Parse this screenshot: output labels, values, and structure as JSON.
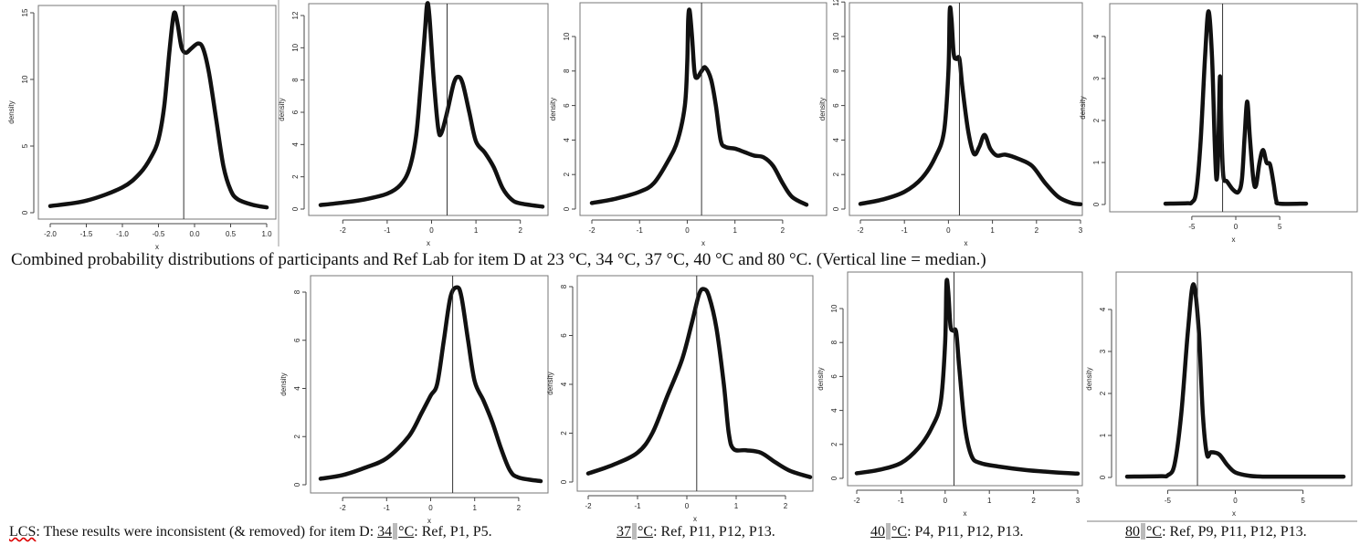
{
  "caption": "Combined probability distributions of participants and Ref Lab for item D at 23 °C, 34 °C, 37 °C, 40 °C and 80 °C. (Vertical line = median.)",
  "footnote": {
    "prefix": "LCS",
    "intro": ": These results were inconsistent (& removed) for item D: ",
    "items": [
      {
        "temp_value": "34",
        "temp_unit": "°C",
        "list": ": Ref, P1, P5."
      },
      {
        "temp_value": "37",
        "temp_unit": "°C",
        "list": ": Ref, P11, P12, P13."
      },
      {
        "temp_value": "40",
        "temp_unit": "°C",
        "list": ": P4, P11, P12, P13."
      },
      {
        "temp_value": "80",
        "temp_unit": "°C",
        "list": ": Ref, P9, P11, P12, P13."
      }
    ]
  },
  "chart_data": [
    {
      "type": "line",
      "title": "",
      "xlabel": "x",
      "ylabel": "density",
      "xlim": [
        -2,
        1
      ],
      "ylim": [
        0,
        15
      ],
      "xticks": [
        -2,
        -1.5,
        -1,
        -0.5,
        0,
        0.5,
        1
      ],
      "xtick_labels": [
        "-2.0",
        "-1.5",
        "-1.0",
        "-0.5",
        "0.0",
        "0.5",
        "1.0"
      ],
      "yticks": [
        0,
        5,
        10,
        15
      ],
      "ytick_labels": [
        "0",
        "5",
        "10",
        "15"
      ],
      "median": -0.15,
      "points": [
        [
          -2,
          0.5
        ],
        [
          -1.5,
          0.9
        ],
        [
          -1,
          1.9
        ],
        [
          -0.75,
          3
        ],
        [
          -0.6,
          4.2
        ],
        [
          -0.5,
          5.5
        ],
        [
          -0.42,
          8
        ],
        [
          -0.35,
          12
        ],
        [
          -0.3,
          14.5
        ],
        [
          -0.27,
          15
        ],
        [
          -0.23,
          14
        ],
        [
          -0.18,
          12.4
        ],
        [
          -0.12,
          12
        ],
        [
          -0.05,
          12.3
        ],
        [
          0.05,
          12.7
        ],
        [
          0.12,
          12.3
        ],
        [
          0.2,
          10.5
        ],
        [
          0.3,
          7
        ],
        [
          0.4,
          3.5
        ],
        [
          0.5,
          1.7
        ],
        [
          0.6,
          1.0
        ],
        [
          0.8,
          0.6
        ],
        [
          1,
          0.4
        ]
      ]
    },
    {
      "type": "line",
      "title": "",
      "xlabel": "x",
      "ylabel": "density",
      "xlim": [
        -2.5,
        2.5
      ],
      "ylim": [
        0,
        12
      ],
      "xticks": [
        -2,
        -1,
        0,
        1,
        2
      ],
      "xtick_labels": [
        "-2",
        "-1",
        "0",
        "1",
        "2"
      ],
      "yticks": [
        0,
        2,
        4,
        6,
        8,
        10,
        12
      ],
      "ytick_labels": [
        "0",
        "2",
        "4",
        "6",
        "8",
        "10",
        "12"
      ],
      "median": 0.35,
      "points": [
        [
          -2.5,
          0.25
        ],
        [
          -2,
          0.4
        ],
        [
          -1.5,
          0.6
        ],
        [
          -1,
          0.95
        ],
        [
          -0.7,
          1.5
        ],
        [
          -0.5,
          2.5
        ],
        [
          -0.35,
          4.5
        ],
        [
          -0.25,
          7.5
        ],
        [
          -0.15,
          11
        ],
        [
          -0.1,
          12.7
        ],
        [
          -0.05,
          12
        ],
        [
          0.05,
          8
        ],
        [
          0.15,
          5
        ],
        [
          0.22,
          4.7
        ],
        [
          0.35,
          6
        ],
        [
          0.5,
          7.8
        ],
        [
          0.6,
          8.2
        ],
        [
          0.7,
          7.8
        ],
        [
          0.85,
          6
        ],
        [
          1,
          4.2
        ],
        [
          1.2,
          3.5
        ],
        [
          1.4,
          2.6
        ],
        [
          1.6,
          1.3
        ],
        [
          1.8,
          0.6
        ],
        [
          2,
          0.35
        ],
        [
          2.5,
          0.15
        ]
      ]
    },
    {
      "type": "line",
      "title": "",
      "xlabel": "x",
      "ylabel": "density",
      "xlim": [
        -2,
        2.5
      ],
      "ylim": [
        0,
        10
      ],
      "xticks": [
        -2,
        -1,
        0,
        1,
        2
      ],
      "xtick_labels": [
        "-2",
        "-1",
        "0",
        "1",
        "2"
      ],
      "yticks": [
        0,
        2,
        4,
        6,
        8,
        10
      ],
      "ytick_labels": [
        "0",
        "2",
        "4",
        "6",
        "8",
        "10"
      ],
      "median": 0.3,
      "points": [
        [
          -2,
          0.35
        ],
        [
          -1.5,
          0.6
        ],
        [
          -1,
          1.0
        ],
        [
          -0.7,
          1.5
        ],
        [
          -0.4,
          2.8
        ],
        [
          -0.2,
          4
        ],
        [
          -0.05,
          6
        ],
        [
          0,
          8.5
        ],
        [
          0.02,
          11
        ],
        [
          0.05,
          11.5
        ],
        [
          0.1,
          10
        ],
        [
          0.15,
          8
        ],
        [
          0.2,
          7.6
        ],
        [
          0.3,
          8
        ],
        [
          0.38,
          8.2
        ],
        [
          0.5,
          7.5
        ],
        [
          0.6,
          6
        ],
        [
          0.7,
          4
        ],
        [
          0.8,
          3.6
        ],
        [
          1,
          3.5
        ],
        [
          1.2,
          3.3
        ],
        [
          1.4,
          3.1
        ],
        [
          1.6,
          3.0
        ],
        [
          1.8,
          2.5
        ],
        [
          2,
          1.5
        ],
        [
          2.2,
          0.7
        ],
        [
          2.5,
          0.25
        ]
      ]
    },
    {
      "type": "line",
      "title": "",
      "xlabel": "x",
      "ylabel": "density",
      "xlim": [
        -2,
        3
      ],
      "ylim": [
        0,
        10
      ],
      "xticks": [
        -2,
        -1,
        0,
        1,
        2,
        3
      ],
      "xtick_labels": [
        "-2",
        "-1",
        "0",
        "1",
        "2",
        "3"
      ],
      "yticks": [
        0,
        2,
        4,
        6,
        8,
        10,
        12
      ],
      "ytick_labels": [
        "0",
        "2",
        "4",
        "6",
        "8",
        "10",
        "12"
      ],
      "median": 0.25,
      "points": [
        [
          -2,
          0.3
        ],
        [
          -1.5,
          0.55
        ],
        [
          -1,
          1
        ],
        [
          -0.6,
          1.8
        ],
        [
          -0.3,
          3
        ],
        [
          -0.1,
          4.5
        ],
        [
          0,
          8
        ],
        [
          0.03,
          11.5
        ],
        [
          0.07,
          11
        ],
        [
          0.12,
          9
        ],
        [
          0.18,
          8.7
        ],
        [
          0.25,
          8.7
        ],
        [
          0.32,
          7
        ],
        [
          0.45,
          4.5
        ],
        [
          0.58,
          3.2
        ],
        [
          0.7,
          3.6
        ],
        [
          0.82,
          4.3
        ],
        [
          0.95,
          3.5
        ],
        [
          1.1,
          3.1
        ],
        [
          1.3,
          3.15
        ],
        [
          1.6,
          2.9
        ],
        [
          1.9,
          2.5
        ],
        [
          2.2,
          1.5
        ],
        [
          2.5,
          0.7
        ],
        [
          2.8,
          0.35
        ],
        [
          3,
          0.28
        ]
      ]
    },
    {
      "type": "line",
      "title": "",
      "xlabel": "x",
      "ylabel": "density",
      "xlim": [
        -8,
        8
      ],
      "ylim": [
        0,
        4
      ],
      "xticks": [
        -5,
        0,
        5
      ],
      "xtick_labels": [
        "-5",
        "0",
        "5"
      ],
      "yticks": [
        0,
        1,
        2,
        3,
        4
      ],
      "ytick_labels": [
        "0",
        "1",
        "2",
        "3",
        "4"
      ],
      "median": -1.5,
      "points": [
        [
          -8,
          0.02
        ],
        [
          -5.5,
          0.03
        ],
        [
          -5,
          0.05
        ],
        [
          -4.5,
          0.3
        ],
        [
          -4,
          1.5
        ],
        [
          -3.5,
          3.5
        ],
        [
          -3.1,
          4.6
        ],
        [
          -2.7,
          3.5
        ],
        [
          -2.4,
          1.5
        ],
        [
          -2.2,
          0.6
        ],
        [
          -2,
          1.2
        ],
        [
          -1.8,
          3.05
        ],
        [
          -1.6,
          1.5
        ],
        [
          -1.4,
          0.65
        ],
        [
          -1,
          0.55
        ],
        [
          -0.3,
          0.35
        ],
        [
          0.3,
          0.3
        ],
        [
          0.7,
          0.6
        ],
        [
          1,
          1.6
        ],
        [
          1.3,
          2.45
        ],
        [
          1.6,
          1.6
        ],
        [
          2,
          0.6
        ],
        [
          2.3,
          0.45
        ],
        [
          2.7,
          1
        ],
        [
          3.1,
          1.3
        ],
        [
          3.5,
          1
        ],
        [
          3.9,
          0.95
        ],
        [
          4.3,
          0.5
        ],
        [
          4.6,
          0.1
        ],
        [
          5,
          0.02
        ],
        [
          8,
          0.02
        ]
      ]
    },
    {
      "type": "line",
      "title": "",
      "xlabel": "x",
      "ylabel": "density",
      "xlim": [
        -2.5,
        2.5
      ],
      "ylim": [
        0,
        8
      ],
      "xticks": [
        -2,
        -1,
        0,
        1,
        2
      ],
      "xtick_labels": [
        "-2",
        "-1",
        "0",
        "1",
        "2"
      ],
      "yticks": [
        0,
        2,
        4,
        6,
        8
      ],
      "ytick_labels": [
        "0",
        "2",
        "4",
        "6",
        "8"
      ],
      "median": 0.5,
      "points": [
        [
          -2.5,
          0.25
        ],
        [
          -2,
          0.4
        ],
        [
          -1.5,
          0.7
        ],
        [
          -1,
          1.1
        ],
        [
          -0.5,
          2
        ],
        [
          -0.2,
          3
        ],
        [
          0,
          3.7
        ],
        [
          0.15,
          4.2
        ],
        [
          0.3,
          6
        ],
        [
          0.45,
          7.8
        ],
        [
          0.6,
          8.2
        ],
        [
          0.7,
          7.8
        ],
        [
          0.85,
          6
        ],
        [
          1,
          4.3
        ],
        [
          1.2,
          3.5
        ],
        [
          1.4,
          2.6
        ],
        [
          1.6,
          1.5
        ],
        [
          1.8,
          0.6
        ],
        [
          2,
          0.3
        ],
        [
          2.5,
          0.15
        ]
      ]
    },
    {
      "type": "line",
      "title": "",
      "xlabel": "x",
      "ylabel": "density",
      "xlim": [
        -2,
        2.5
      ],
      "ylim": [
        0,
        8
      ],
      "xticks": [
        -2,
        -1,
        0,
        1,
        2
      ],
      "xtick_labels": [
        "-2",
        "-1",
        "0",
        "1",
        "2"
      ],
      "yticks": [
        0,
        2,
        4,
        6,
        8
      ],
      "ytick_labels": [
        "0",
        "2",
        "4",
        "6",
        "8"
      ],
      "median": 0.2,
      "points": [
        [
          -2,
          0.35
        ],
        [
          -1.5,
          0.7
        ],
        [
          -1,
          1.2
        ],
        [
          -0.7,
          2
        ],
        [
          -0.4,
          3.5
        ],
        [
          -0.1,
          5
        ],
        [
          0.1,
          6.5
        ],
        [
          0.25,
          7.7
        ],
        [
          0.35,
          7.9
        ],
        [
          0.45,
          7.6
        ],
        [
          0.6,
          6.3
        ],
        [
          0.75,
          4
        ],
        [
          0.85,
          2
        ],
        [
          0.95,
          1.35
        ],
        [
          1.2,
          1.3
        ],
        [
          1.5,
          1.2
        ],
        [
          1.8,
          0.8
        ],
        [
          2.1,
          0.45
        ],
        [
          2.5,
          0.2
        ]
      ]
    },
    {
      "type": "line",
      "title": "",
      "xlabel": "x",
      "ylabel": "density",
      "xlim": [
        -2,
        3
      ],
      "ylim": [
        0,
        10
      ],
      "xticks": [
        -2,
        -1,
        0,
        1,
        2,
        3
      ],
      "xtick_labels": [
        "-2",
        "-1",
        "0",
        "1",
        "2",
        "3"
      ],
      "yticks": [
        0,
        2,
        4,
        6,
        8,
        10
      ],
      "ytick_labels": [
        "0",
        "2",
        "4",
        "6",
        "8",
        "10"
      ],
      "median": 0.2,
      "points": [
        [
          -2,
          0.3
        ],
        [
          -1.5,
          0.5
        ],
        [
          -1,
          0.9
        ],
        [
          -0.6,
          1.8
        ],
        [
          -0.3,
          3
        ],
        [
          -0.1,
          4.5
        ],
        [
          0,
          8
        ],
        [
          0.03,
          11.5
        ],
        [
          0.07,
          11
        ],
        [
          0.12,
          9
        ],
        [
          0.18,
          8.7
        ],
        [
          0.25,
          8.6
        ],
        [
          0.32,
          6.5
        ],
        [
          0.45,
          3
        ],
        [
          0.6,
          1.3
        ],
        [
          0.8,
          0.9
        ],
        [
          1.2,
          0.7
        ],
        [
          1.8,
          0.5
        ],
        [
          2.5,
          0.35
        ],
        [
          3,
          0.28
        ]
      ]
    },
    {
      "type": "line",
      "title": "",
      "xlabel": "x",
      "ylabel": "density",
      "xlim": [
        -8,
        8
      ],
      "ylim": [
        0,
        4
      ],
      "xticks": [
        -5,
        0,
        5
      ],
      "xtick_labels": [
        "-5",
        "0",
        "5"
      ],
      "yticks": [
        0,
        1,
        2,
        3,
        4
      ],
      "ytick_labels": [
        "0",
        "1",
        "2",
        "3",
        "4"
      ],
      "median": -2.8,
      "points": [
        [
          -8,
          0.02
        ],
        [
          -5.5,
          0.03
        ],
        [
          -5,
          0.05
        ],
        [
          -4.5,
          0.3
        ],
        [
          -4,
          1.5
        ],
        [
          -3.5,
          3.5
        ],
        [
          -3.1,
          4.6
        ],
        [
          -2.7,
          3.5
        ],
        [
          -2.4,
          1.5
        ],
        [
          -2.1,
          0.55
        ],
        [
          -1.8,
          0.6
        ],
        [
          -1.2,
          0.55
        ],
        [
          -0.6,
          0.3
        ],
        [
          0,
          0.12
        ],
        [
          1,
          0.04
        ],
        [
          2,
          0.02
        ],
        [
          3.5,
          0.02
        ],
        [
          8,
          0.02
        ]
      ]
    }
  ]
}
